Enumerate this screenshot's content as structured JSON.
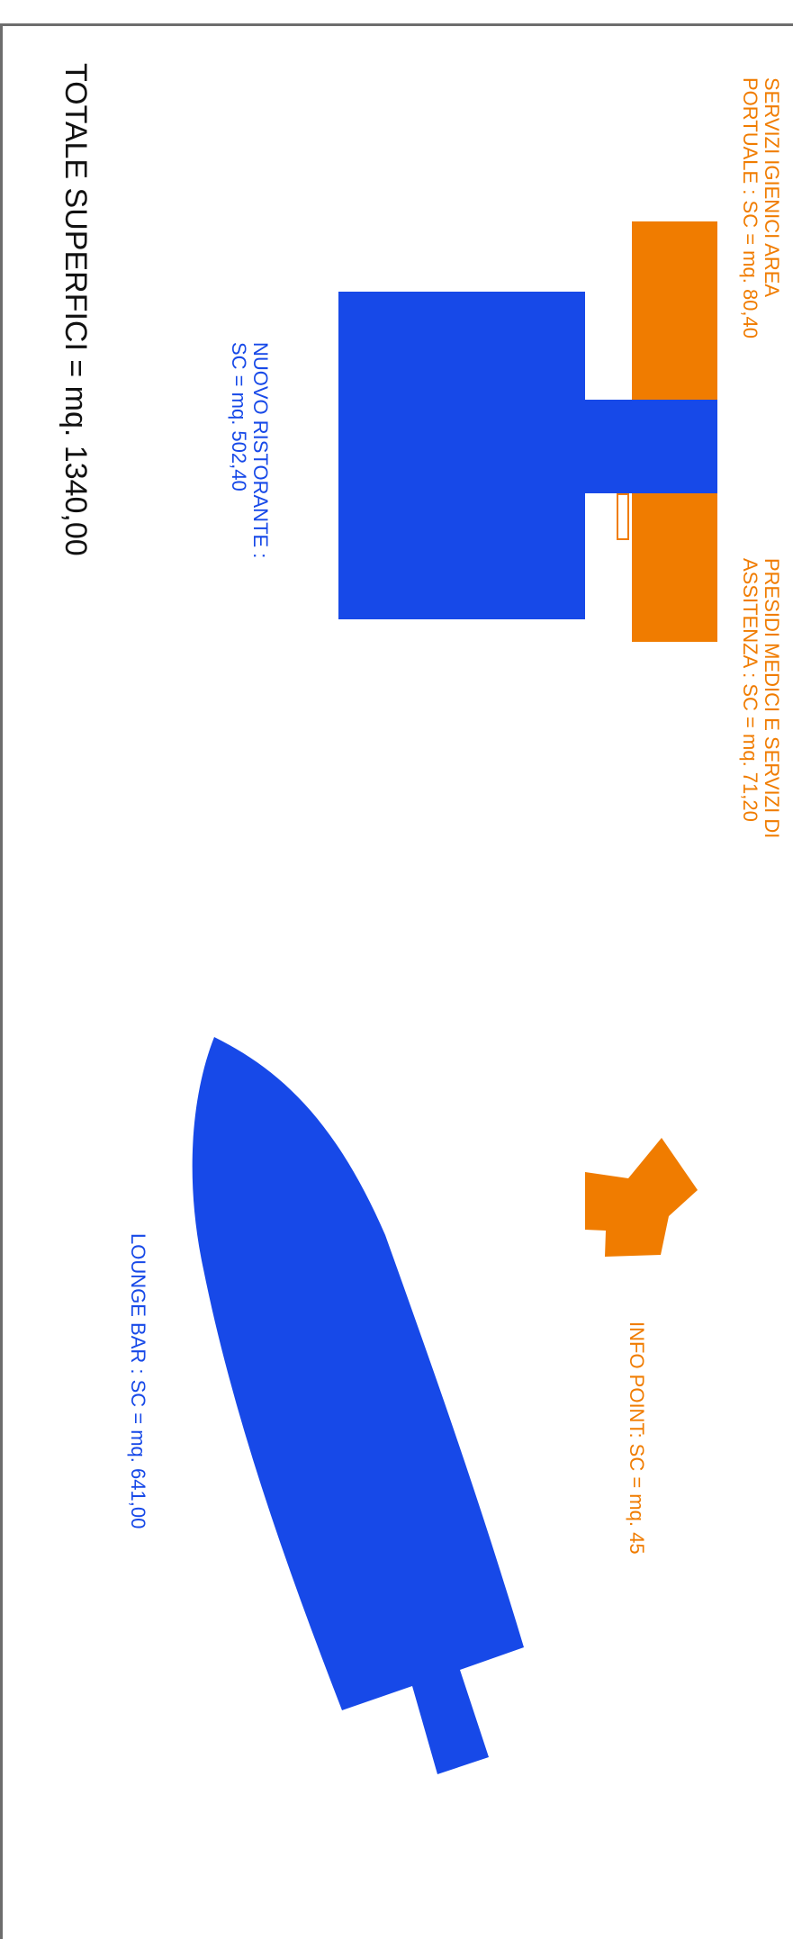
{
  "colors": {
    "service": "#f07c00",
    "building": "#1749e8",
    "text": "#111111",
    "border": "#6d6d6d"
  },
  "labels": {
    "services_area": [
      "SERVIZI IGIENICI AREA",
      "PORTUALE : SC = mq. 80,40"
    ],
    "medical_services": [
      "PRESIDI MEDICI E SERVIZI DI",
      "ASSITENZA : SC = mq. 71,20"
    ],
    "restaurant": [
      "NUOVO RISTORANTE :",
      "SC = mq. 502,40"
    ],
    "info_point": "INFO POINT: SC = mq.  45",
    "lounge_bar": "LOUNGE BAR : SC = mq. 641,00",
    "total": "TOTALE SUPERFICI = mq. 1340,00"
  }
}
